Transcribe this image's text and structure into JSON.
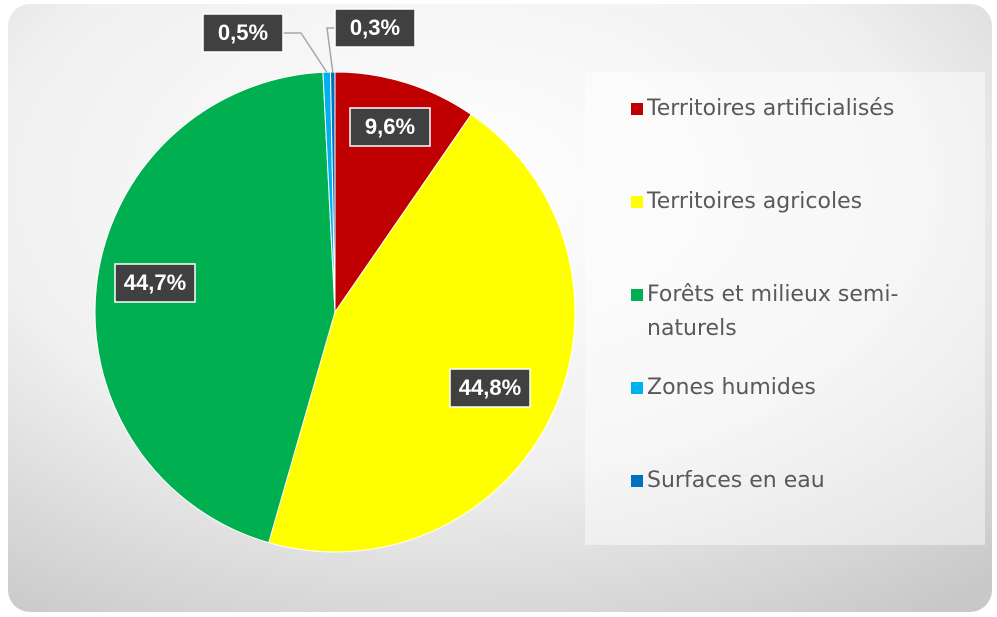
{
  "chart_data": {
    "type": "pie",
    "categories": [
      "Territoires artificialisés",
      "Territoires agricoles",
      "Forêts et milieux semi-naturels",
      "Zones humides",
      "Surfaces en eau"
    ],
    "values": [
      9.6,
      44.8,
      44.7,
      0.5,
      0.3
    ],
    "value_labels": [
      "9,6%",
      "44,8%",
      "44,7%",
      "0,5%",
      "0,3%"
    ],
    "colors": [
      "#c00000",
      "#ffff00",
      "#00b050",
      "#00b0f0",
      "#0070c0"
    ],
    "legend": "right"
  }
}
